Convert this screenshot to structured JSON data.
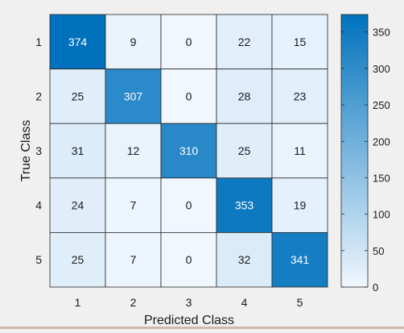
{
  "chart_data": {
    "type": "heatmap",
    "xlabel": "Predicted Class",
    "ylabel": "True Class",
    "x_categories": [
      "1",
      "2",
      "3",
      "4",
      "5"
    ],
    "y_categories": [
      "1",
      "2",
      "3",
      "4",
      "5"
    ],
    "values": [
      [
        374,
        9,
        0,
        22,
        15
      ],
      [
        25,
        307,
        0,
        28,
        23
      ],
      [
        31,
        12,
        310,
        25,
        11
      ],
      [
        24,
        7,
        0,
        353,
        19
      ],
      [
        25,
        7,
        0,
        32,
        341
      ]
    ],
    "colorbar": {
      "min": 0,
      "max": 374,
      "ticks": [
        0,
        50,
        100,
        150,
        200,
        250,
        300,
        350
      ],
      "color_low": "#f0f7fe",
      "color_high": "#0072bd"
    },
    "grid": true
  }
}
